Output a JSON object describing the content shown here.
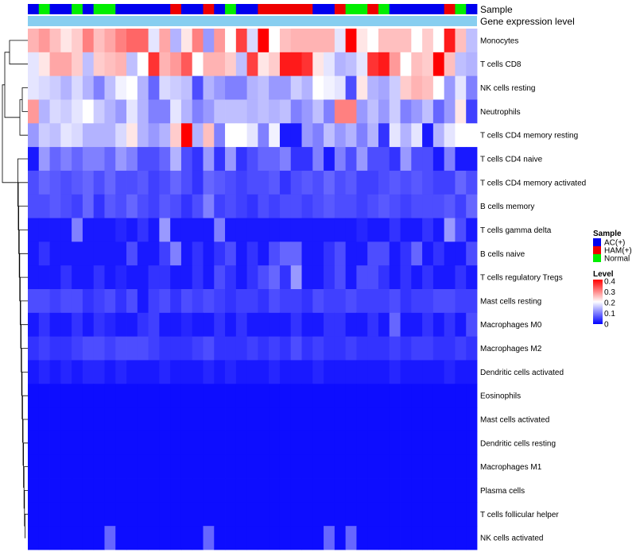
{
  "chart_data": {
    "type": "heatmap",
    "title": "",
    "annotation_tracks": [
      "Sample",
      "Gene expression level"
    ],
    "rows": [
      "Monocytes",
      "T cells CD8",
      "NK cells resting",
      "Neutrophils",
      "T cells CD4 memory resting",
      "T cells CD4 naive",
      "T cells CD4 memory activated",
      "B cells memory",
      "T cells gamma delta",
      "B cells naive",
      "T cells regulatory  Tregs",
      "Mast cells resting",
      "Macrophages M0",
      "Macrophages M2",
      "Dendritic cells activated",
      "Eosinophils",
      "Mast cells activated",
      "Dendritic cells resting",
      "Macrophages M1",
      "Plasma cells",
      "T cells follicular helper",
      "NK cells activated"
    ],
    "samples": [
      "AC",
      "N",
      "AC",
      "AC",
      "N",
      "AC",
      "N",
      "N",
      "AC",
      "AC",
      "AC",
      "AC",
      "AC",
      "H",
      "AC",
      "AC",
      "H",
      "AC",
      "N",
      "AC",
      "AC",
      "H",
      "H",
      "H",
      "H",
      "H",
      "AC",
      "AC",
      "H",
      "N",
      "N",
      "H",
      "N",
      "AC",
      "AC",
      "AC",
      "AC",
      "AC",
      "H",
      "N",
      "AC"
    ],
    "sample_colors": {
      "AC": "#0000ee",
      "H": "#ee0000",
      "N": "#00ee00"
    },
    "legend": {
      "sample_title": "Sample",
      "sample_items": [
        {
          "label": "AC(+)",
          "color": "#0000ee"
        },
        {
          "label": "HAM(+)",
          "color": "#ee0000"
        },
        {
          "label": "Normal",
          "color": "#00ee00"
        }
      ],
      "level_title": "Level",
      "level_ticks": [
        0.4,
        0.3,
        0.2,
        0.1,
        0
      ],
      "level_range": [
        0,
        0.4
      ]
    },
    "values": [
      [
        0.26,
        0.28,
        0.25,
        0.22,
        0.24,
        0.3,
        0.25,
        0.27,
        0.3,
        0.32,
        0.32,
        0.18,
        0.27,
        0.14,
        0.22,
        0.3,
        0.12,
        0.28,
        0.2,
        0.35,
        0.17,
        0.4,
        0.2,
        0.25,
        0.26,
        0.26,
        0.26,
        0.26,
        0.18,
        0.4,
        0.22,
        0.2,
        0.25,
        0.25,
        0.25,
        0.2,
        0.24,
        0.2,
        0.38,
        0.25,
        0.15
      ],
      [
        0.18,
        0.22,
        0.27,
        0.27,
        0.24,
        0.15,
        0.24,
        0.25,
        0.26,
        0.15,
        0.2,
        0.36,
        0.26,
        0.28,
        0.33,
        0.2,
        0.26,
        0.26,
        0.24,
        0.15,
        0.35,
        0.22,
        0.24,
        0.38,
        0.38,
        0.36,
        0.22,
        0.18,
        0.14,
        0.15,
        0.18,
        0.36,
        0.38,
        0.28,
        0.2,
        0.25,
        0.24,
        0.4,
        0.25,
        0.15,
        0.14
      ],
      [
        0.18,
        0.17,
        0.16,
        0.14,
        0.17,
        0.14,
        0.1,
        0.15,
        0.19,
        0.2,
        0.14,
        0.08,
        0.17,
        0.16,
        0.15,
        0.06,
        0.14,
        0.12,
        0.1,
        0.1,
        0.14,
        0.15,
        0.12,
        0.12,
        0.16,
        0.14,
        0.2,
        0.19,
        0.18,
        0.06,
        0.22,
        0.14,
        0.13,
        0.16,
        0.24,
        0.26,
        0.25,
        0.2,
        0.12,
        0.18,
        0.1
      ],
      [
        0.28,
        0.14,
        0.17,
        0.16,
        0.18,
        0.2,
        0.16,
        0.14,
        0.12,
        0.18,
        0.14,
        0.1,
        0.1,
        0.18,
        0.14,
        0.1,
        0.12,
        0.15,
        0.15,
        0.15,
        0.14,
        0.15,
        0.14,
        0.15,
        0.1,
        0.12,
        0.15,
        0.1,
        0.3,
        0.3,
        0.12,
        0.15,
        0.12,
        0.16,
        0.1,
        0.12,
        0.15,
        0.08,
        0.12,
        0.22,
        0.05
      ],
      [
        0.12,
        0.16,
        0.15,
        0.18,
        0.17,
        0.14,
        0.14,
        0.14,
        0.17,
        0.22,
        0.14,
        0.12,
        0.14,
        0.24,
        0.4,
        0.14,
        0.25,
        0.1,
        0.2,
        0.2,
        0.18,
        0.1,
        0.19,
        0.02,
        0.02,
        0.12,
        0.1,
        0.15,
        0.12,
        0.14,
        0.1,
        0.14,
        0.04,
        0.18,
        0.14,
        0.18,
        0.02,
        0.14,
        0.18,
        0.2,
        0.2
      ],
      [
        0.02,
        0.12,
        0.08,
        0.1,
        0.08,
        0.1,
        0.1,
        0.08,
        0.12,
        0.1,
        0.06,
        0.06,
        0.08,
        0.14,
        0.06,
        0.04,
        0.12,
        0.04,
        0.12,
        0.04,
        0.06,
        0.08,
        0.08,
        0.1,
        0.04,
        0.04,
        0.1,
        0.02,
        0.1,
        0.06,
        0.12,
        0.06,
        0.06,
        0.04,
        0.12,
        0.06,
        0.06,
        0.02,
        0.1,
        0.02,
        0.02
      ],
      [
        0.06,
        0.08,
        0.07,
        0.06,
        0.07,
        0.08,
        0.06,
        0.08,
        0.06,
        0.06,
        0.07,
        0.05,
        0.06,
        0.08,
        0.06,
        0.04,
        0.08,
        0.07,
        0.06,
        0.05,
        0.06,
        0.06,
        0.07,
        0.04,
        0.06,
        0.07,
        0.06,
        0.08,
        0.06,
        0.07,
        0.05,
        0.05,
        0.06,
        0.07,
        0.06,
        0.07,
        0.06,
        0.05,
        0.05,
        0.08,
        0.06
      ],
      [
        0.06,
        0.06,
        0.07,
        0.06,
        0.05,
        0.08,
        0.04,
        0.07,
        0.06,
        0.08,
        0.06,
        0.05,
        0.07,
        0.06,
        0.04,
        0.06,
        0.1,
        0.05,
        0.06,
        0.05,
        0.04,
        0.06,
        0.05,
        0.06,
        0.06,
        0.05,
        0.06,
        0.07,
        0.06,
        0.06,
        0.05,
        0.06,
        0.07,
        0.06,
        0.05,
        0.06,
        0.06,
        0.06,
        0.07,
        0.05,
        0.08
      ],
      [
        0.02,
        0.02,
        0.02,
        0.02,
        0.1,
        0.02,
        0.02,
        0.02,
        0.03,
        0.02,
        0.04,
        0.02,
        0.12,
        0.02,
        0.02,
        0.02,
        0.02,
        0.1,
        0.02,
        0.02,
        0.02,
        0.02,
        0.02,
        0.02,
        0.02,
        0.02,
        0.02,
        0.02,
        0.02,
        0.02,
        0.03,
        0.02,
        0.02,
        0.04,
        0.02,
        0.02,
        0.04,
        0.02,
        0.12,
        0.06,
        0.02
      ],
      [
        0.02,
        0.04,
        0.02,
        0.02,
        0.02,
        0.02,
        0.02,
        0.02,
        0.02,
        0.06,
        0.02,
        0.02,
        0.05,
        0.1,
        0.02,
        0.04,
        0.02,
        0.04,
        0.06,
        0.02,
        0.04,
        0.02,
        0.06,
        0.08,
        0.08,
        0.02,
        0.02,
        0.04,
        0.06,
        0.02,
        0.02,
        0.06,
        0.06,
        0.02,
        0.04,
        0.08,
        0.02,
        0.04,
        0.02,
        0.02,
        0.06
      ],
      [
        0.02,
        0.02,
        0.02,
        0.04,
        0.02,
        0.02,
        0.04,
        0.02,
        0.03,
        0.02,
        0.02,
        0.04,
        0.04,
        0.02,
        0.02,
        0.04,
        0.02,
        0.06,
        0.04,
        0.02,
        0.04,
        0.06,
        0.08,
        0.04,
        0.12,
        0.02,
        0.02,
        0.04,
        0.06,
        0.02,
        0.06,
        0.06,
        0.04,
        0.02,
        0.04,
        0.02,
        0.04,
        0.02,
        0.02,
        0.04,
        0.02
      ],
      [
        0.06,
        0.06,
        0.05,
        0.06,
        0.06,
        0.04,
        0.05,
        0.06,
        0.04,
        0.06,
        0.02,
        0.05,
        0.06,
        0.04,
        0.06,
        0.05,
        0.06,
        0.05,
        0.04,
        0.05,
        0.05,
        0.04,
        0.06,
        0.05,
        0.05,
        0.04,
        0.06,
        0.05,
        0.05,
        0.06,
        0.05,
        0.05,
        0.05,
        0.06,
        0.04,
        0.05,
        0.05,
        0.06,
        0.06,
        0.05,
        0.05
      ],
      [
        0.02,
        0.04,
        0.02,
        0.02,
        0.04,
        0.02,
        0.04,
        0.03,
        0.02,
        0.02,
        0.04,
        0.05,
        0.02,
        0.02,
        0.03,
        0.02,
        0.02,
        0.04,
        0.02,
        0.04,
        0.02,
        0.02,
        0.02,
        0.02,
        0.04,
        0.02,
        0.02,
        0.04,
        0.04,
        0.02,
        0.02,
        0.04,
        0.02,
        0.08,
        0.02,
        0.02,
        0.04,
        0.02,
        0.04,
        0.02,
        0.06
      ],
      [
        0.04,
        0.05,
        0.04,
        0.04,
        0.05,
        0.06,
        0.06,
        0.05,
        0.06,
        0.06,
        0.06,
        0.05,
        0.04,
        0.04,
        0.04,
        0.05,
        0.06,
        0.04,
        0.04,
        0.04,
        0.05,
        0.04,
        0.05,
        0.04,
        0.06,
        0.04,
        0.05,
        0.04,
        0.04,
        0.05,
        0.04,
        0.04,
        0.04,
        0.05,
        0.04,
        0.05,
        0.05,
        0.04,
        0.04,
        0.05,
        0.04
      ],
      [
        0.02,
        0.03,
        0.02,
        0.03,
        0.02,
        0.03,
        0.03,
        0.02,
        0.03,
        0.02,
        0.02,
        0.02,
        0.03,
        0.02,
        0.02,
        0.02,
        0.03,
        0.02,
        0.03,
        0.02,
        0.02,
        0.02,
        0.03,
        0.02,
        0.02,
        0.02,
        0.03,
        0.02,
        0.02,
        0.02,
        0.02,
        0.02,
        0.02,
        0.03,
        0.02,
        0.02,
        0.02,
        0.02,
        0.03,
        0.02,
        0.02
      ],
      [
        0.01,
        0.01,
        0.01,
        0.01,
        0.01,
        0.01,
        0.01,
        0.01,
        0.01,
        0.01,
        0.01,
        0.01,
        0.01,
        0.01,
        0.01,
        0.01,
        0.01,
        0.01,
        0.01,
        0.01,
        0.01,
        0.01,
        0.01,
        0.01,
        0.01,
        0.01,
        0.01,
        0.01,
        0.01,
        0.01,
        0.01,
        0.01,
        0.01,
        0.01,
        0.01,
        0.01,
        0.01,
        0.01,
        0.01,
        0.01,
        0.01
      ],
      [
        0.01,
        0.01,
        0.01,
        0.01,
        0.01,
        0.01,
        0.01,
        0.01,
        0.01,
        0.01,
        0.01,
        0.01,
        0.01,
        0.01,
        0.01,
        0.01,
        0.01,
        0.01,
        0.01,
        0.01,
        0.01,
        0.01,
        0.01,
        0.01,
        0.01,
        0.01,
        0.01,
        0.01,
        0.01,
        0.01,
        0.01,
        0.01,
        0.01,
        0.01,
        0.01,
        0.01,
        0.01,
        0.01,
        0.01,
        0.01,
        0.01
      ],
      [
        0.01,
        0.01,
        0.01,
        0.01,
        0.01,
        0.01,
        0.01,
        0.01,
        0.01,
        0.01,
        0.01,
        0.01,
        0.01,
        0.01,
        0.01,
        0.01,
        0.01,
        0.01,
        0.01,
        0.01,
        0.01,
        0.01,
        0.01,
        0.01,
        0.01,
        0.01,
        0.01,
        0.01,
        0.01,
        0.01,
        0.01,
        0.01,
        0.01,
        0.01,
        0.01,
        0.01,
        0.01,
        0.01,
        0.01,
        0.01,
        0.01
      ],
      [
        0.01,
        0.01,
        0.01,
        0.01,
        0.01,
        0.01,
        0.01,
        0.01,
        0.01,
        0.01,
        0.01,
        0.01,
        0.01,
        0.01,
        0.01,
        0.01,
        0.01,
        0.01,
        0.01,
        0.01,
        0.01,
        0.01,
        0.01,
        0.01,
        0.01,
        0.01,
        0.01,
        0.01,
        0.01,
        0.01,
        0.01,
        0.01,
        0.01,
        0.01,
        0.01,
        0.01,
        0.01,
        0.01,
        0.01,
        0.01,
        0.01
      ],
      [
        0.01,
        0.01,
        0.01,
        0.01,
        0.01,
        0.01,
        0.01,
        0.01,
        0.01,
        0.01,
        0.01,
        0.01,
        0.01,
        0.01,
        0.01,
        0.01,
        0.01,
        0.01,
        0.01,
        0.01,
        0.01,
        0.01,
        0.01,
        0.01,
        0.01,
        0.01,
        0.01,
        0.01,
        0.01,
        0.01,
        0.01,
        0.01,
        0.01,
        0.01,
        0.01,
        0.01,
        0.01,
        0.01,
        0.01,
        0.01,
        0.01
      ],
      [
        0.01,
        0.01,
        0.01,
        0.01,
        0.01,
        0.01,
        0.01,
        0.01,
        0.01,
        0.01,
        0.01,
        0.01,
        0.01,
        0.01,
        0.01,
        0.01,
        0.01,
        0.01,
        0.01,
        0.01,
        0.01,
        0.01,
        0.01,
        0.01,
        0.01,
        0.01,
        0.01,
        0.01,
        0.01,
        0.01,
        0.01,
        0.01,
        0.01,
        0.01,
        0.01,
        0.01,
        0.01,
        0.01,
        0.01,
        0.01,
        0.01
      ],
      [
        0.01,
        0.01,
        0.01,
        0.01,
        0.01,
        0.01,
        0.01,
        0.08,
        0.01,
        0.01,
        0.01,
        0.01,
        0.01,
        0.01,
        0.01,
        0.01,
        0.08,
        0.01,
        0.01,
        0.01,
        0.01,
        0.01,
        0.01,
        0.01,
        0.01,
        0.01,
        0.01,
        0.08,
        0.01,
        0.08,
        0.01,
        0.01,
        0.01,
        0.01,
        0.01,
        0.01,
        0.01,
        0.01,
        0.01,
        0.01,
        0.01
      ]
    ]
  }
}
